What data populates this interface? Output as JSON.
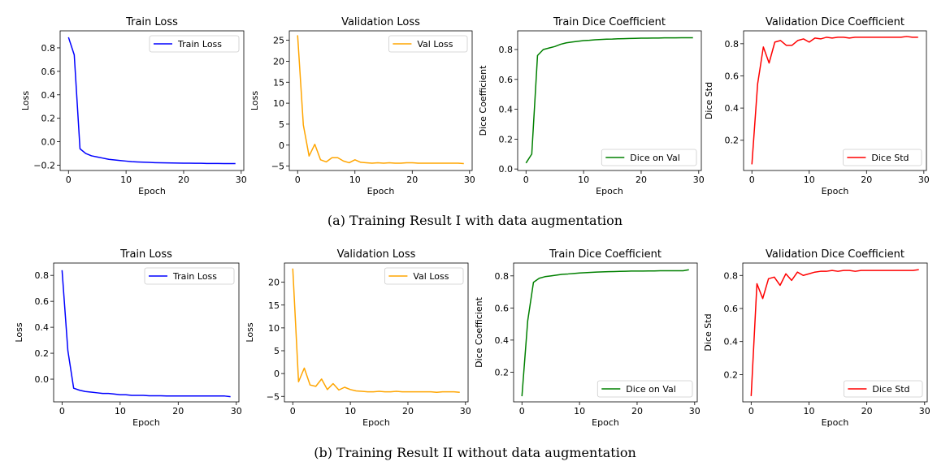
{
  "captions": {
    "a": "(a) Training Result I with data augmentation",
    "b": "(b) Training Result II without data augmentation"
  },
  "chart_data": [
    {
      "type": "line",
      "title": "Train Loss",
      "xlabel": "Epoch",
      "ylabel": "Loss",
      "xlim": [
        -1.45,
        30.45
      ],
      "ylim": [
        -0.245,
        0.945
      ],
      "xticks": [
        0,
        10,
        20,
        30
      ],
      "xtick_labels": [
        "0",
        "10",
        "20",
        "30"
      ],
      "yticks": [
        -0.2,
        0.0,
        0.2,
        0.4,
        0.6,
        0.8
      ],
      "ytick_labels": [
        "−0.2",
        "0.0",
        "0.2",
        "0.4",
        "0.6",
        "0.8"
      ],
      "legend": "top-right",
      "series": [
        {
          "name": "Train Loss",
          "color": "#0000ff",
          "x": [
            0,
            1,
            2,
            3,
            4,
            5,
            6,
            7,
            8,
            9,
            10,
            11,
            12,
            13,
            14,
            15,
            16,
            17,
            18,
            19,
            20,
            21,
            22,
            23,
            24,
            25,
            26,
            27,
            28,
            29
          ],
          "y": [
            0.89,
            0.74,
            -0.06,
            -0.1,
            -0.12,
            -0.13,
            -0.14,
            -0.15,
            -0.155,
            -0.16,
            -0.165,
            -0.17,
            -0.172,
            -0.174,
            -0.176,
            -0.178,
            -0.179,
            -0.18,
            -0.181,
            -0.182,
            -0.183,
            -0.183,
            -0.184,
            -0.184,
            -0.185,
            -0.185,
            -0.185,
            -0.186,
            -0.186,
            -0.186
          ]
        }
      ]
    },
    {
      "type": "line",
      "title": "Validation Loss",
      "xlabel": "Epoch",
      "ylabel": "Loss",
      "xlim": [
        -1.45,
        30.45
      ],
      "ylim": [
        -6.05,
        27.25
      ],
      "xticks": [
        0,
        10,
        20,
        30
      ],
      "xtick_labels": [
        "0",
        "10",
        "20",
        "30"
      ],
      "yticks": [
        -5,
        0,
        5,
        10,
        15,
        20,
        25
      ],
      "ytick_labels": [
        "−5",
        "0",
        "5",
        "10",
        "15",
        "20",
        "25"
      ],
      "legend": "top-right",
      "series": [
        {
          "name": "Val Loss",
          "color": "#ffa500",
          "x": [
            0,
            1,
            2,
            3,
            4,
            5,
            6,
            7,
            8,
            9,
            10,
            11,
            12,
            13,
            14,
            15,
            16,
            17,
            18,
            19,
            20,
            21,
            22,
            23,
            24,
            25,
            26,
            27,
            28,
            29
          ],
          "y": [
            26.2,
            4.8,
            -2.6,
            0.2,
            -3.5,
            -4.0,
            -3.0,
            -3.0,
            -3.8,
            -4.2,
            -3.5,
            -4.1,
            -4.2,
            -4.3,
            -4.2,
            -4.3,
            -4.2,
            -4.3,
            -4.3,
            -4.2,
            -4.2,
            -4.3,
            -4.3,
            -4.3,
            -4.3,
            -4.3,
            -4.3,
            -4.3,
            -4.3,
            -4.4
          ]
        }
      ]
    },
    {
      "type": "line",
      "title": "Train Dice Coefficient",
      "xlabel": "Epoch",
      "ylabel": "Dice Coefficient",
      "xlim": [
        -1.45,
        30.45
      ],
      "ylim": [
        -0.01,
        0.925
      ],
      "xticks": [
        0,
        10,
        20,
        30
      ],
      "xtick_labels": [
        "0",
        "10",
        "20",
        "30"
      ],
      "yticks": [
        0.0,
        0.2,
        0.4,
        0.6,
        0.8
      ],
      "ytick_labels": [
        "0.0",
        "0.2",
        "0.4",
        "0.6",
        "0.8"
      ],
      "legend": "bottom-right",
      "series": [
        {
          "name": "Dice on Val",
          "color": "#008000",
          "x": [
            0,
            1,
            2,
            3,
            4,
            5,
            6,
            7,
            8,
            9,
            10,
            11,
            12,
            13,
            14,
            15,
            16,
            17,
            18,
            19,
            20,
            21,
            22,
            23,
            24,
            25,
            26,
            27,
            28,
            29
          ],
          "y": [
            0.04,
            0.1,
            0.76,
            0.8,
            0.81,
            0.82,
            0.835,
            0.845,
            0.85,
            0.855,
            0.86,
            0.862,
            0.865,
            0.867,
            0.869,
            0.87,
            0.872,
            0.873,
            0.874,
            0.875,
            0.876,
            0.876,
            0.877,
            0.877,
            0.878,
            0.878,
            0.878,
            0.879,
            0.879,
            0.879
          ]
        }
      ]
    },
    {
      "type": "line",
      "title": "Validation Dice Coefficient",
      "xlabel": "Epoch",
      "ylabel": "Dice Std",
      "xlim": [
        -1.45,
        30.45
      ],
      "ylim": [
        0.012,
        0.88
      ],
      "xticks": [
        0,
        10,
        20,
        30
      ],
      "xtick_labels": [
        "0",
        "10",
        "20",
        "30"
      ],
      "yticks": [
        0.2,
        0.4,
        0.6,
        0.8
      ],
      "ytick_labels": [
        "0.2",
        "0.4",
        "0.6",
        "0.8"
      ],
      "legend": "bottom-right",
      "series": [
        {
          "name": "Dice Std",
          "color": "#ff0000",
          "x": [
            0,
            1,
            2,
            3,
            4,
            5,
            6,
            7,
            8,
            9,
            10,
            11,
            12,
            13,
            14,
            15,
            16,
            17,
            18,
            19,
            20,
            21,
            22,
            23,
            24,
            25,
            26,
            27,
            28,
            29
          ],
          "y": [
            0.05,
            0.55,
            0.78,
            0.68,
            0.81,
            0.82,
            0.79,
            0.79,
            0.82,
            0.83,
            0.81,
            0.835,
            0.83,
            0.84,
            0.835,
            0.84,
            0.84,
            0.835,
            0.84,
            0.84,
            0.84,
            0.84,
            0.84,
            0.84,
            0.84,
            0.84,
            0.84,
            0.845,
            0.84,
            0.84
          ]
        }
      ]
    },
    {
      "type": "line",
      "title": "Train Loss",
      "xlabel": "Epoch",
      "ylabel": "Loss",
      "xlim": [
        -1.45,
        30.45
      ],
      "ylim": [
        -0.175,
        0.895
      ],
      "xticks": [
        0,
        10,
        20,
        30
      ],
      "xtick_labels": [
        "0",
        "10",
        "20",
        "30"
      ],
      "yticks": [
        0.0,
        0.2,
        0.4,
        0.6,
        0.8
      ],
      "ytick_labels": [
        "0.0",
        "0.2",
        "0.4",
        "0.6",
        "0.8"
      ],
      "legend": "top-right",
      "series": [
        {
          "name": "Train Loss",
          "color": "#0000ff",
          "x": [
            0,
            1,
            2,
            3,
            4,
            5,
            6,
            7,
            8,
            9,
            10,
            11,
            12,
            13,
            14,
            15,
            16,
            17,
            18,
            19,
            20,
            21,
            22,
            23,
            24,
            25,
            26,
            27,
            28,
            29
          ],
          "y": [
            0.84,
            0.22,
            -0.07,
            -0.085,
            -0.095,
            -0.1,
            -0.105,
            -0.11,
            -0.11,
            -0.115,
            -0.12,
            -0.12,
            -0.125,
            -0.125,
            -0.125,
            -0.128,
            -0.128,
            -0.128,
            -0.13,
            -0.13,
            -0.13,
            -0.13,
            -0.13,
            -0.13,
            -0.13,
            -0.13,
            -0.13,
            -0.13,
            -0.13,
            -0.135
          ]
        }
      ]
    },
    {
      "type": "line",
      "title": "Validation Loss",
      "xlabel": "Epoch",
      "ylabel": "Loss",
      "xlim": [
        -1.45,
        30.45
      ],
      "ylim": [
        -6.2,
        24.2
      ],
      "xticks": [
        0,
        10,
        20,
        30
      ],
      "xtick_labels": [
        "0",
        "10",
        "20",
        "30"
      ],
      "yticks": [
        -5,
        0,
        5,
        10,
        15,
        20
      ],
      "ytick_labels": [
        "−5",
        "0",
        "5",
        "10",
        "15",
        "20"
      ],
      "legend": "top-right",
      "series": [
        {
          "name": "Val Loss",
          "color": "#ffa500",
          "x": [
            0,
            1,
            2,
            3,
            4,
            5,
            6,
            7,
            8,
            9,
            10,
            11,
            12,
            13,
            14,
            15,
            16,
            17,
            18,
            19,
            20,
            21,
            22,
            23,
            24,
            25,
            26,
            27,
            28,
            29
          ],
          "y": [
            23.0,
            -1.8,
            1.2,
            -2.5,
            -2.8,
            -1.2,
            -3.5,
            -2.2,
            -3.6,
            -3.0,
            -3.5,
            -3.8,
            -3.9,
            -4.0,
            -4.0,
            -3.9,
            -4.0,
            -4.0,
            -3.9,
            -4.0,
            -4.0,
            -4.0,
            -4.0,
            -4.0,
            -4.0,
            -4.1,
            -4.0,
            -4.0,
            -4.0,
            -4.1
          ]
        }
      ]
    },
    {
      "type": "line",
      "title": "Train Dice Coefficient",
      "xlabel": "Epoch",
      "ylabel": "Dice Coefficient",
      "xlim": [
        -1.45,
        30.45
      ],
      "ylim": [
        0.015,
        0.88
      ],
      "xticks": [
        0,
        10,
        20,
        30
      ],
      "xtick_labels": [
        "0",
        "10",
        "20",
        "30"
      ],
      "yticks": [
        0.2,
        0.4,
        0.6,
        0.8
      ],
      "ytick_labels": [
        "0.2",
        "0.4",
        "0.6",
        "0.8"
      ],
      "legend": "bottom-right",
      "series": [
        {
          "name": "Dice on Val",
          "color": "#008000",
          "x": [
            0,
            1,
            2,
            3,
            4,
            5,
            6,
            7,
            8,
            9,
            10,
            11,
            12,
            13,
            14,
            15,
            16,
            17,
            18,
            19,
            20,
            21,
            22,
            23,
            24,
            25,
            26,
            27,
            28,
            29
          ],
          "y": [
            0.05,
            0.52,
            0.76,
            0.785,
            0.795,
            0.8,
            0.805,
            0.81,
            0.812,
            0.815,
            0.818,
            0.82,
            0.822,
            0.824,
            0.825,
            0.826,
            0.827,
            0.828,
            0.829,
            0.83,
            0.83,
            0.83,
            0.831,
            0.831,
            0.832,
            0.832,
            0.832,
            0.832,
            0.832,
            0.838
          ]
        }
      ]
    },
    {
      "type": "line",
      "title": "Validation Dice Coefficient",
      "xlabel": "Epoch",
      "ylabel": "Dice Std",
      "xlim": [
        -1.45,
        30.45
      ],
      "ylim": [
        0.035,
        0.875
      ],
      "xticks": [
        0,
        10,
        20,
        30
      ],
      "xtick_labels": [
        "0",
        "10",
        "20",
        "30"
      ],
      "yticks": [
        0.2,
        0.4,
        0.6,
        0.8
      ],
      "ytick_labels": [
        "0.2",
        "0.4",
        "0.6",
        "0.8"
      ],
      "legend": "bottom-right",
      "series": [
        {
          "name": "Dice Std",
          "color": "#ff0000",
          "x": [
            0,
            1,
            2,
            3,
            4,
            5,
            6,
            7,
            8,
            9,
            10,
            11,
            12,
            13,
            14,
            15,
            16,
            17,
            18,
            19,
            20,
            21,
            22,
            23,
            24,
            25,
            26,
            27,
            28,
            29
          ],
          "y": [
            0.07,
            0.75,
            0.66,
            0.78,
            0.79,
            0.74,
            0.81,
            0.77,
            0.82,
            0.8,
            0.81,
            0.82,
            0.825,
            0.825,
            0.83,
            0.825,
            0.83,
            0.83,
            0.825,
            0.83,
            0.83,
            0.83,
            0.83,
            0.83,
            0.83,
            0.83,
            0.83,
            0.83,
            0.83,
            0.835
          ]
        }
      ]
    }
  ]
}
